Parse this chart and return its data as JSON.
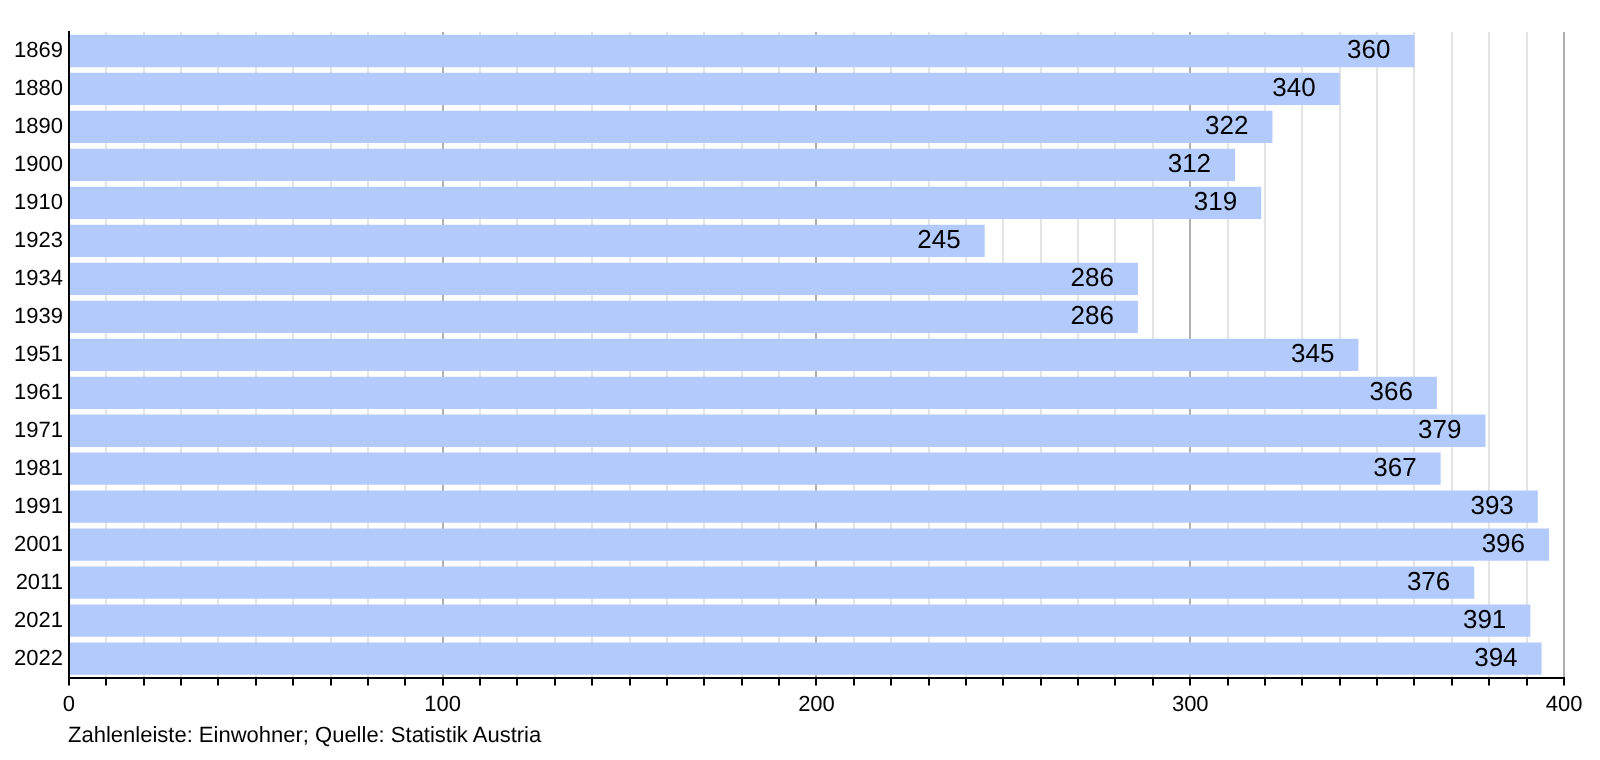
{
  "chart_data": {
    "type": "bar",
    "orientation": "horizontal",
    "categories": [
      "1869",
      "1880",
      "1890",
      "1900",
      "1910",
      "1923",
      "1934",
      "1939",
      "1951",
      "1961",
      "1971",
      "1981",
      "1991",
      "2001",
      "2011",
      "2021",
      "2022"
    ],
    "values": [
      360,
      340,
      322,
      312,
      319,
      245,
      286,
      286,
      345,
      366,
      379,
      367,
      393,
      396,
      376,
      391,
      394
    ],
    "color": "#b3cbfc",
    "xlim": [
      0,
      400
    ],
    "xticks": [
      0,
      {
        "value": 10,
        "label": null
      },
      {
        "value": 20,
        "label": null
      },
      {
        "value": 30,
        "label": null
      },
      {
        "value": 40,
        "label": null
      },
      {
        "value": 50,
        "label": null
      },
      {
        "value": 60,
        "label": null
      },
      {
        "value": 70,
        "label": null
      },
      {
        "value": 80,
        "label": null
      },
      {
        "value": 90,
        "label": null
      },
      100,
      {
        "value": 110,
        "label": null
      },
      {
        "value": 120,
        "label": null
      },
      {
        "value": 130,
        "label": null
      },
      {
        "value": 140,
        "label": null
      },
      {
        "value": 150,
        "label": null
      },
      {
        "value": 160,
        "label": null
      },
      {
        "value": 170,
        "label": null
      },
      {
        "value": 180,
        "label": null
      },
      {
        "value": 190,
        "label": null
      },
      200,
      {
        "value": 210,
        "label": null
      },
      {
        "value": 220,
        "label": null
      },
      {
        "value": 230,
        "label": null
      },
      {
        "value": 240,
        "label": null
      },
      {
        "value": 250,
        "label": null
      },
      {
        "value": 260,
        "label": null
      },
      {
        "value": 270,
        "label": null
      },
      {
        "value": 280,
        "label": null
      },
      {
        "value": 290,
        "label": null
      },
      300,
      {
        "value": 310,
        "label": null
      },
      {
        "value": 320,
        "label": null
      },
      {
        "value": 330,
        "label": null
      },
      {
        "value": 340,
        "label": null
      },
      {
        "value": 350,
        "label": null
      },
      {
        "value": 360,
        "label": null
      },
      {
        "value": 370,
        "label": null
      },
      {
        "value": 380,
        "label": null
      },
      {
        "value": 390,
        "label": null
      },
      400
    ],
    "grid": "x",
    "data_labels": true,
    "legend": false,
    "annotations": [
      "Zahlenleiste: Einwohner; Quelle: Statistik Austria"
    ]
  }
}
